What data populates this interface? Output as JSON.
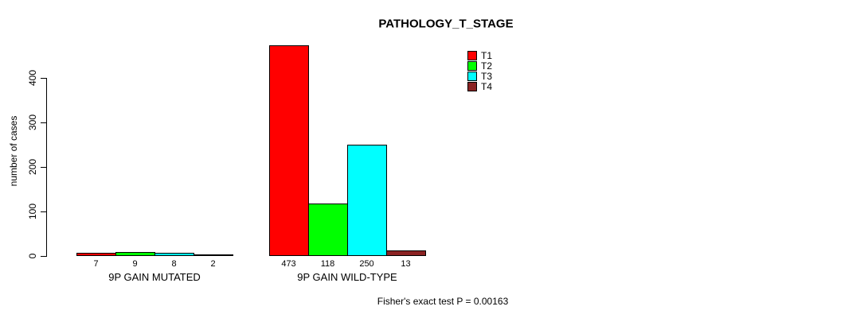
{
  "chart_data": {
    "type": "bar",
    "title": "PATHOLOGY_T_STAGE",
    "xlabel": "",
    "ylabel": "number of cases",
    "ylim": [
      0,
      400
    ],
    "yticks": [
      0,
      100,
      200,
      300,
      400
    ],
    "grid": false,
    "legend_position": "top-right",
    "categories": [
      "9P GAIN MUTATED",
      "9P GAIN WILD-TYPE"
    ],
    "series": [
      {
        "name": "T1",
        "color": "#FF0000",
        "values": [
          7,
          473
        ]
      },
      {
        "name": "T2",
        "color": "#00FF00",
        "values": [
          9,
          118
        ]
      },
      {
        "name": "T3",
        "color": "#00FFFF",
        "values": [
          8,
          250
        ]
      },
      {
        "name": "T4",
        "color": "#8B2323",
        "values": [
          2,
          13
        ]
      }
    ],
    "bar_value_labels": [
      [
        "7",
        "9",
        "8",
        "2"
      ],
      [
        "473",
        "118",
        "250",
        "13"
      ]
    ],
    "annotation": "Fisher's exact test P = 0.00163"
  }
}
